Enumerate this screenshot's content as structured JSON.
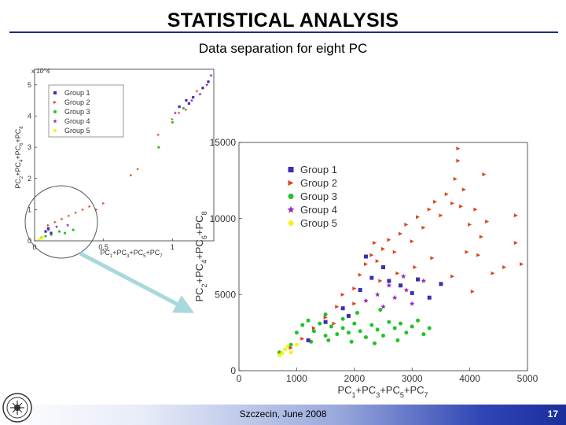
{
  "slide": {
    "title": "STATISTICAL ANALYSIS",
    "subtitle": "Data separation for eight PC",
    "footer": "Szczecin, June 2008",
    "page_number": "17"
  },
  "colors": {
    "title_rule": "#1f2a8c",
    "arrow": "#a8d8dc",
    "group1": "#3a2fb0",
    "group2": "#d9461a",
    "group3": "#22c229",
    "group4": "#9a2ab8",
    "group5": "#f5f21a"
  },
  "chart_data": [
    {
      "type": "scatter",
      "title": "",
      "xlabel": "PC1+PC3+PC5+PC7",
      "ylabel": "PC2+PC4+PC6+PC8",
      "y_exponent_label": "x 10^4",
      "xlim": [
        0,
        1.3
      ],
      "ylim": [
        0,
        5.5
      ],
      "x_ticks": [
        "0",
        "0.5",
        "1"
      ],
      "y_ticks": [
        "0",
        "1",
        "2",
        "3",
        "4",
        "5"
      ],
      "legend_position": "top-left",
      "series": [
        {
          "name": "Group 1",
          "marker": "square",
          "color": "#3a2fb0",
          "points": [
            [
              0.08,
              0.3
            ],
            [
              0.1,
              0.4
            ],
            [
              0.12,
              0.25
            ],
            [
              1.05,
              4.3
            ],
            [
              1.1,
              4.5
            ],
            [
              1.12,
              4.4
            ],
            [
              1.15,
              4.6
            ],
            [
              1.22,
              4.9
            ],
            [
              1.26,
              5.1
            ]
          ]
        },
        {
          "name": "Group 2",
          "marker": "triangle",
          "color": "#d9461a",
          "points": [
            [
              0.1,
              0.5
            ],
            [
              0.15,
              0.6
            ],
            [
              0.2,
              0.7
            ],
            [
              0.25,
              0.8
            ],
            [
              0.3,
              0.9
            ],
            [
              0.35,
              1.0
            ],
            [
              0.4,
              1.1
            ],
            [
              0.45,
              1.0
            ],
            [
              0.5,
              1.2
            ],
            [
              0.7,
              2.1
            ],
            [
              0.75,
              2.3
            ],
            [
              0.9,
              3.4
            ],
            [
              1.0,
              3.9
            ],
            [
              1.05,
              4.1
            ],
            [
              1.1,
              4.2
            ],
            [
              1.18,
              4.8
            ]
          ]
        },
        {
          "name": "Group 3",
          "marker": "circle",
          "color": "#22c229",
          "points": [
            [
              0.05,
              0.1
            ],
            [
              0.08,
              0.15
            ],
            [
              0.12,
              0.2
            ],
            [
              0.18,
              0.3
            ],
            [
              0.22,
              0.25
            ],
            [
              0.28,
              0.35
            ],
            [
              0.9,
              3.0
            ],
            [
              1.0,
              3.8
            ],
            [
              1.08,
              4.25
            ]
          ]
        },
        {
          "name": "Group 4",
          "marker": "star",
          "color": "#9a2ab8",
          "points": [
            [
              0.1,
              0.35
            ],
            [
              0.16,
              0.45
            ],
            [
              0.24,
              0.5
            ],
            [
              1.02,
              4.1
            ],
            [
              1.14,
              4.5
            ],
            [
              1.2,
              4.7
            ],
            [
              1.25,
              5.0
            ],
            [
              1.28,
              5.3
            ]
          ]
        },
        {
          "name": "Group 5",
          "marker": "circle",
          "color": "#f5f21a",
          "points": [
            [
              0.03,
              0.05
            ],
            [
              0.05,
              0.08
            ],
            [
              0.06,
              0.12
            ]
          ]
        }
      ]
    },
    {
      "type": "scatter",
      "title": "",
      "xlabel": "PC1+PC3+PC5+PC7",
      "ylabel": "PC2+PC4+PC6+PC8",
      "xlim": [
        0,
        5000
      ],
      "ylim": [
        0,
        15000
      ],
      "x_ticks": [
        "0",
        "1000",
        "2000",
        "3000",
        "4000",
        "5000"
      ],
      "y_ticks": [
        "0",
        "5000",
        "10000",
        "15000"
      ],
      "legend_position": "top-left",
      "series": [
        {
          "name": "Group 1",
          "marker": "square",
          "color": "#3a2fb0",
          "points": [
            [
              1200,
              2000
            ],
            [
              1500,
              3200
            ],
            [
              1800,
              4100
            ],
            [
              2100,
              5300
            ],
            [
              2300,
              6100
            ],
            [
              2500,
              6800
            ],
            [
              2600,
              5900
            ],
            [
              2800,
              5600
            ],
            [
              3000,
              5100
            ],
            [
              3100,
              6000
            ],
            [
              3300,
              4800
            ],
            [
              3500,
              5700
            ],
            [
              1900,
              3600
            ],
            [
              2200,
              7500
            ]
          ]
        },
        {
          "name": "Group 2",
          "marker": "triangle",
          "color": "#d9461a",
          "points": [
            [
              900,
              1500
            ],
            [
              1100,
              2100
            ],
            [
              1300,
              2800
            ],
            [
              1500,
              3500
            ],
            [
              1700,
              4200
            ],
            [
              1800,
              5000
            ],
            [
              2000,
              5400
            ],
            [
              2100,
              6300
            ],
            [
              2200,
              7000
            ],
            [
              2300,
              7600
            ],
            [
              2400,
              7200
            ],
            [
              2500,
              8000
            ],
            [
              2600,
              8600
            ],
            [
              2700,
              7800
            ],
            [
              2800,
              9000
            ],
            [
              2900,
              9600
            ],
            [
              3000,
              8500
            ],
            [
              3100,
              10100
            ],
            [
              3200,
              9400
            ],
            [
              3300,
              10600
            ],
            [
              3400,
              11100
            ],
            [
              3500,
              10200
            ],
            [
              3600,
              11600
            ],
            [
              3700,
              11000
            ],
            [
              3750,
              12600
            ],
            [
              3800,
              13800
            ],
            [
              3850,
              10800
            ],
            [
              3900,
              11900
            ],
            [
              4000,
              9600
            ],
            [
              4100,
              10600
            ],
            [
              4200,
              8800
            ],
            [
              4300,
              9800
            ],
            [
              4400,
              6400
            ],
            [
              4600,
              6800
            ],
            [
              4800,
              8400
            ],
            [
              4900,
              7000
            ],
            [
              4800,
              10200
            ],
            [
              4150,
              7600
            ],
            [
              3950,
              7800
            ],
            [
              3700,
              6200
            ],
            [
              4050,
              5200
            ],
            [
              3800,
              14600
            ],
            [
              4250,
              12900
            ],
            [
              2000,
              4400
            ],
            [
              2450,
              5900
            ],
            [
              2750,
              6400
            ],
            [
              3050,
              6800
            ],
            [
              3350,
              7400
            ],
            [
              1650,
              3100
            ],
            [
              2350,
              8400
            ]
          ]
        },
        {
          "name": "Group 3",
          "marker": "circle",
          "color": "#22c229",
          "points": [
            [
              700,
              1200
            ],
            [
              900,
              1700
            ],
            [
              1000,
              2500
            ],
            [
              1100,
              3000
            ],
            [
              1200,
              3300
            ],
            [
              1300,
              2600
            ],
            [
              1400,
              3100
            ],
            [
              1500,
              2300
            ],
            [
              1600,
              2900
            ],
            [
              1700,
              2400
            ],
            [
              1800,
              2800
            ],
            [
              1900,
              2500
            ],
            [
              2000,
              3100
            ],
            [
              2100,
              2600
            ],
            [
              2200,
              2200
            ],
            [
              2300,
              3000
            ],
            [
              2400,
              2700
            ],
            [
              2500,
              2300
            ],
            [
              2600,
              3200
            ],
            [
              2700,
              2800
            ],
            [
              2800,
              3100
            ],
            [
              2900,
              2500
            ],
            [
              3000,
              2900
            ],
            [
              3100,
              3300
            ],
            [
              3200,
              2400
            ],
            [
              3300,
              2800
            ],
            [
              1500,
              3700
            ],
            [
              1800,
              3400
            ],
            [
              2050,
              3800
            ],
            [
              2450,
              4000
            ],
            [
              1250,
              1900
            ],
            [
              1550,
              2000
            ],
            [
              1950,
              1900
            ],
            [
              2350,
              1800
            ],
            [
              2750,
              2000
            ]
          ]
        },
        {
          "name": "Group 4",
          "marker": "star",
          "color": "#9a2ab8",
          "points": [
            [
              2400,
              5000
            ],
            [
              2600,
              5600
            ],
            [
              2700,
              4800
            ],
            [
              2900,
              5300
            ],
            [
              3000,
              4400
            ],
            [
              3200,
              5900
            ],
            [
              2200,
              4600
            ],
            [
              2500,
              4200
            ],
            [
              2850,
              6200
            ]
          ]
        },
        {
          "name": "Group 5",
          "marker": "circle",
          "color": "#f5f21a",
          "points": [
            [
              700,
              1000
            ],
            [
              800,
              1400
            ],
            [
              900,
              1200
            ],
            [
              1000,
              1700
            ],
            [
              750,
              1150
            ],
            [
              850,
              1600
            ]
          ]
        }
      ]
    }
  ]
}
